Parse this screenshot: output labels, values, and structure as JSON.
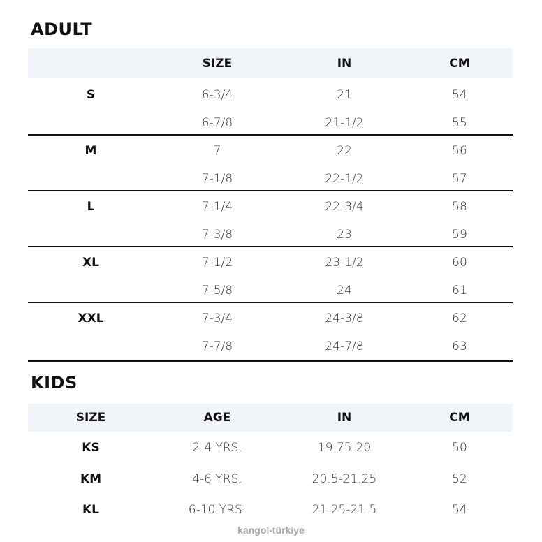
{
  "adult": {
    "title": "ADULT",
    "headers": [
      "",
      "SIZE",
      "IN",
      "CM"
    ],
    "groups": [
      {
        "label": "S",
        "rows": [
          [
            "6-3/4",
            "21",
            "54"
          ],
          [
            "6-7/8",
            "21-1/2",
            "55"
          ]
        ]
      },
      {
        "label": "M",
        "rows": [
          [
            "7",
            "22",
            "56"
          ],
          [
            "7-1/8",
            "22-1/2",
            "57"
          ]
        ]
      },
      {
        "label": "L",
        "rows": [
          [
            "7-1/4",
            "22-3/4",
            "58"
          ],
          [
            "7-3/8",
            "23",
            "59"
          ]
        ]
      },
      {
        "label": "XL",
        "rows": [
          [
            "7-1/2",
            "23-1/2",
            "60"
          ],
          [
            "7-5/8",
            "24",
            "61"
          ]
        ]
      },
      {
        "label": "XXL",
        "rows": [
          [
            "7-3/4",
            "24-3/8",
            "62"
          ],
          [
            "7-7/8",
            "24-7/8",
            "63"
          ]
        ]
      }
    ]
  },
  "kids": {
    "title": "KIDS",
    "headers": [
      "SIZE",
      "AGE",
      "IN",
      "CM"
    ],
    "rows": [
      [
        "KS",
        "2-4 YRS.",
        "19.75-20",
        "50"
      ],
      [
        "KM",
        "4-6 YRS.",
        "20.5-21.25",
        "52"
      ],
      [
        "KL",
        "6-10 YRS.",
        "21.25-21.5",
        "54"
      ]
    ]
  },
  "watermark": "kangol-türkiye",
  "colors": {
    "header_bg": "#f1f4f9",
    "divider": "#111111"
  }
}
